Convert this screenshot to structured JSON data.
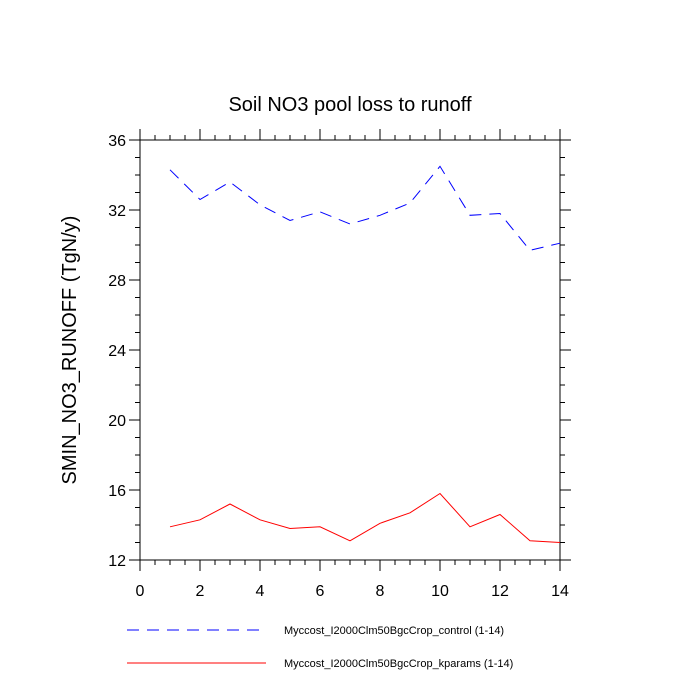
{
  "chart_data": {
    "type": "line",
    "title": "Soil NO3 pool loss to runoff",
    "ylabel": "SMIN_NO3_RUNOFF  (TgN/y)",
    "xlabel": "",
    "xlim": [
      0,
      14
    ],
    "ylim": [
      12,
      36
    ],
    "xticks": [
      0,
      2,
      4,
      6,
      8,
      10,
      12,
      14
    ],
    "yticks": [
      12,
      16,
      20,
      24,
      28,
      32,
      36
    ],
    "grid": false,
    "legend_position": "bottom",
    "x": [
      1,
      2,
      3,
      4,
      5,
      6,
      7,
      8,
      9,
      10,
      11,
      12,
      13,
      14
    ],
    "series": [
      {
        "name": "Myccost_I2000Clm50BgcCrop_control (1-14)",
        "color": "#0000ff",
        "style": "dashed",
        "values": [
          34.3,
          32.6,
          33.6,
          32.3,
          31.4,
          31.9,
          31.2,
          31.7,
          32.4,
          34.5,
          31.7,
          31.8,
          29.7,
          30.1
        ]
      },
      {
        "name": "Myccost_I2000Clm50BgcCrop_kparams (1-14)",
        "color": "#ff0000",
        "style": "solid",
        "values": [
          13.9,
          14.3,
          15.2,
          14.3,
          13.8,
          13.9,
          13.1,
          14.1,
          14.7,
          15.8,
          13.9,
          14.6,
          13.1,
          13.0
        ]
      }
    ]
  }
}
